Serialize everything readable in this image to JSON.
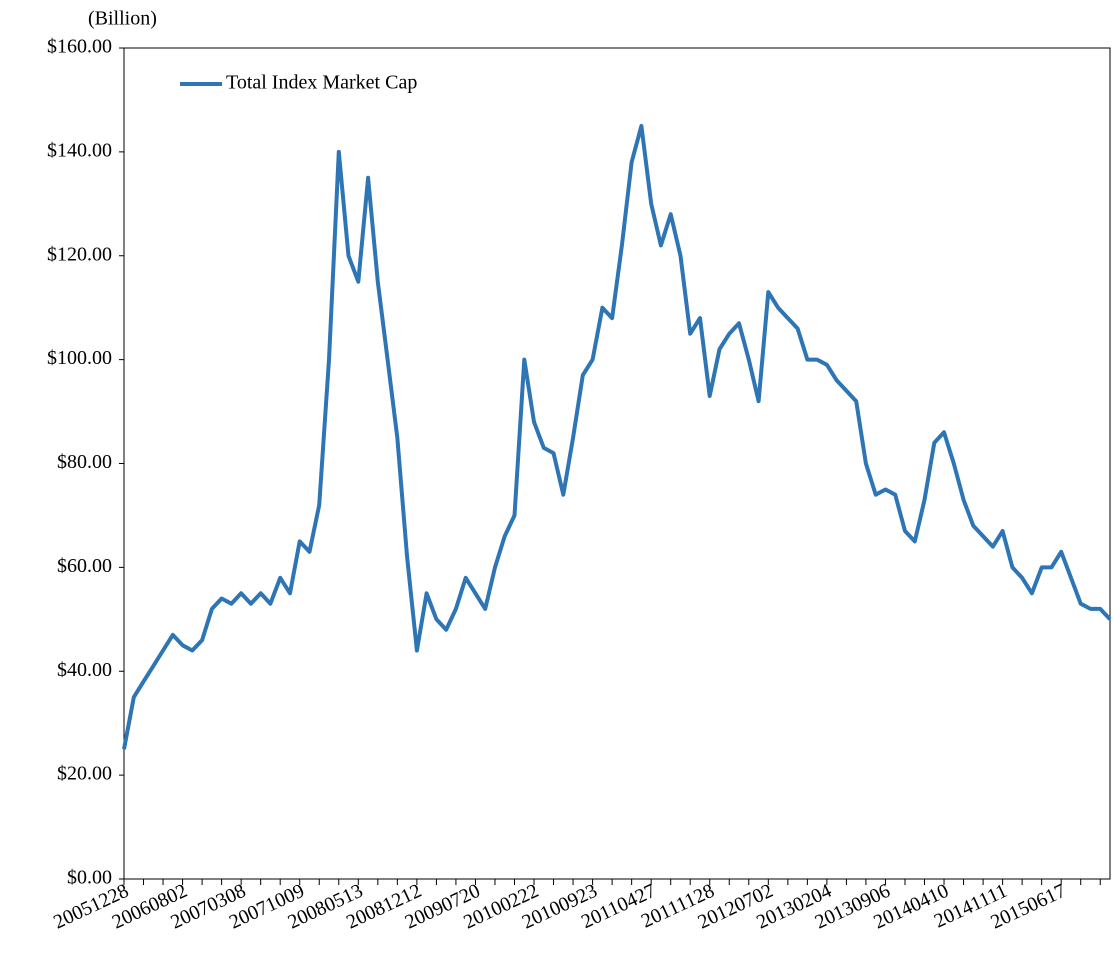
{
  "chart_data": {
    "type": "line",
    "y_axis_label": "(Billion)",
    "categories": [
      "20051228",
      null,
      null,
      null,
      null,
      null,
      "20060802",
      null,
      null,
      null,
      null,
      null,
      "20070308",
      null,
      null,
      null,
      null,
      null,
      "20071009",
      null,
      null,
      null,
      null,
      null,
      "20080513",
      null,
      null,
      null,
      null,
      null,
      "20081212",
      null,
      null,
      null,
      null,
      null,
      "20090720",
      null,
      null,
      null,
      null,
      null,
      "20100222",
      null,
      null,
      null,
      null,
      null,
      "20100923",
      null,
      null,
      null,
      null,
      null,
      "20110427",
      null,
      null,
      null,
      null,
      null,
      "20111128",
      null,
      null,
      null,
      null,
      null,
      "20120702",
      null,
      null,
      null,
      null,
      null,
      "20130204",
      null,
      null,
      null,
      null,
      null,
      "20130906",
      null,
      null,
      null,
      null,
      null,
      "20140410",
      null,
      null,
      null,
      null,
      null,
      "20141111",
      null,
      null,
      null,
      null,
      null,
      "20150617",
      null,
      null,
      null,
      null,
      null
    ],
    "series": [
      {
        "name": "Total Index Market Cap",
        "color": "#2e75b6",
        "values": [
          25,
          35,
          38,
          41,
          44,
          47,
          45,
          44,
          46,
          52,
          54,
          53,
          55,
          53,
          55,
          53,
          58,
          55,
          65,
          63,
          72,
          100,
          140,
          120,
          115,
          135,
          115,
          100,
          85,
          62,
          44,
          55,
          50,
          48,
          52,
          58,
          55,
          52,
          60,
          66,
          70,
          100,
          88,
          83,
          82,
          74,
          85,
          97,
          100,
          110,
          108,
          122,
          138,
          145,
          130,
          122,
          128,
          120,
          105,
          108,
          93,
          102,
          105,
          107,
          100,
          92,
          113,
          110,
          108,
          106,
          100,
          100,
          99,
          96,
          94,
          92,
          80,
          74,
          75,
          74,
          67,
          65,
          73,
          84,
          86,
          80,
          73,
          68,
          66,
          64,
          67,
          60,
          58,
          55,
          60,
          60,
          63,
          58,
          53,
          52,
          52,
          50
        ]
      }
    ],
    "ylim": [
      0,
      160
    ],
    "yticks": [
      {
        "value": 0,
        "label": "$0.00"
      },
      {
        "value": 20,
        "label": "$20.00"
      },
      {
        "value": 40,
        "label": "$40.00"
      },
      {
        "value": 60,
        "label": "$60.00"
      },
      {
        "value": 80,
        "label": "$80.00"
      },
      {
        "value": 100,
        "label": "$100.00"
      },
      {
        "value": 120,
        "label": "$120.00"
      },
      {
        "value": 140,
        "label": "$140.00"
      },
      {
        "value": 160,
        "label": "$160.00"
      }
    ],
    "legend": "top-left"
  }
}
